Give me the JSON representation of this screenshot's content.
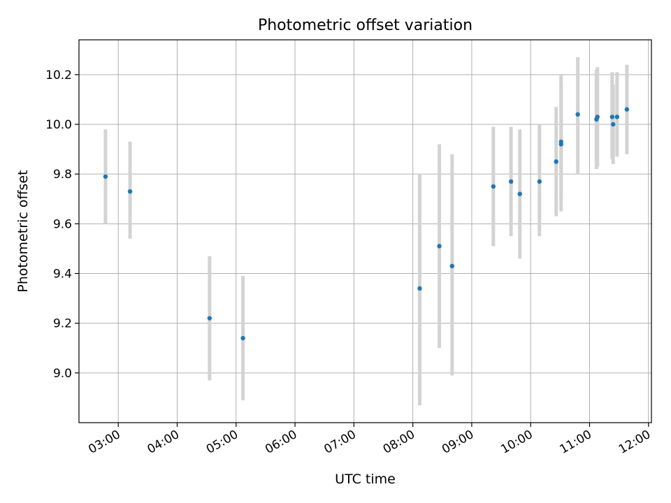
{
  "chart_data": {
    "type": "scatter",
    "title": "Photometric offset variation",
    "xlabel": "UTC time",
    "ylabel": "Photometric offset",
    "x_unit": "UTC hours",
    "xlim": [
      "02:20",
      "12:03"
    ],
    "ylim": [
      8.8,
      10.34
    ],
    "x_ticks": [
      "03:00",
      "04:00",
      "05:00",
      "06:00",
      "07:00",
      "08:00",
      "09:00",
      "10:00",
      "11:00",
      "12:00"
    ],
    "y_ticks": [
      9.0,
      9.2,
      9.4,
      9.6,
      9.8,
      10.0,
      10.2
    ],
    "y_tick_labels": [
      "9.0",
      "9.2",
      "9.4",
      "9.6",
      "9.8",
      "10.0",
      "10.2"
    ],
    "grid": true,
    "x_tick_rotation": "30 degrees",
    "series": [
      {
        "marker_color": "#1f77b4",
        "errorbar_color": "#d3d3d3",
        "points": [
          {
            "x": "02:47",
            "y": 9.79,
            "low": 9.6,
            "high": 9.98
          },
          {
            "x": "03:12",
            "y": 9.73,
            "low": 9.54,
            "high": 9.93
          },
          {
            "x": "04:33",
            "y": 9.22,
            "low": 8.97,
            "high": 9.47
          },
          {
            "x": "05:07",
            "y": 9.14,
            "low": 8.89,
            "high": 9.39
          },
          {
            "x": "08:07",
            "y": 9.34,
            "low": 8.87,
            "high": 9.8
          },
          {
            "x": "08:27",
            "y": 9.51,
            "low": 9.1,
            "high": 9.92
          },
          {
            "x": "08:40",
            "y": 9.43,
            "low": 8.99,
            "high": 9.88
          },
          {
            "x": "09:22",
            "y": 9.75,
            "low": 9.51,
            "high": 9.99
          },
          {
            "x": "09:40",
            "y": 9.77,
            "low": 9.55,
            "high": 9.99
          },
          {
            "x": "09:49",
            "y": 9.72,
            "low": 9.46,
            "high": 9.98
          },
          {
            "x": "10:09",
            "y": 9.77,
            "low": 9.55,
            "high": 10.0
          },
          {
            "x": "10:26",
            "y": 9.85,
            "low": 9.63,
            "high": 10.07
          },
          {
            "x": "10:31",
            "y": 9.93,
            "low": 9.7,
            "high": 10.16
          },
          {
            "x": "10:31",
            "y": 9.92,
            "low": 9.65,
            "high": 10.2
          },
          {
            "x": "10:48",
            "y": 10.04,
            "low": 9.8,
            "high": 10.27
          },
          {
            "x": "11:07",
            "y": 10.02,
            "low": 9.82,
            "high": 10.22
          },
          {
            "x": "11:08",
            "y": 10.03,
            "low": 9.83,
            "high": 10.23
          },
          {
            "x": "11:23",
            "y": 10.03,
            "low": 9.86,
            "high": 10.21
          },
          {
            "x": "11:24",
            "y": 10.0,
            "low": 9.84,
            "high": 10.16
          },
          {
            "x": "11:28",
            "y": 10.03,
            "low": 9.87,
            "high": 10.21
          },
          {
            "x": "11:38",
            "y": 10.06,
            "low": 9.88,
            "high": 10.24
          }
        ]
      }
    ]
  }
}
